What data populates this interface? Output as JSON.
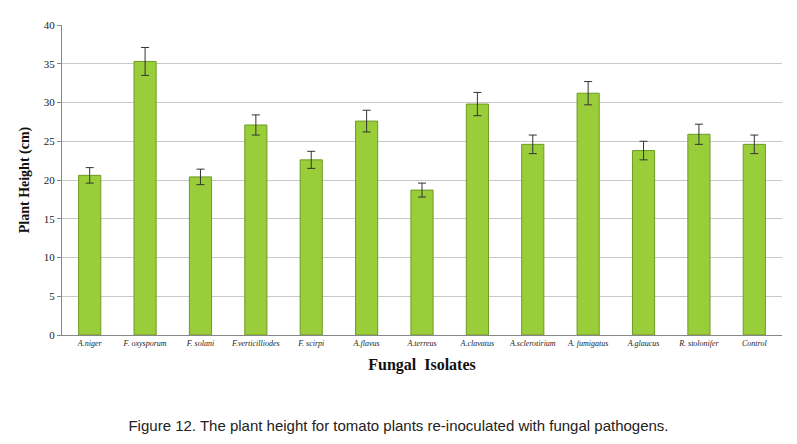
{
  "chart_data": {
    "type": "bar",
    "title": "Figure 12. The plant height for tomato plants re-inoculated with fungal pathogens.",
    "x_label": "Fungal  Isolates",
    "y_label": "Plant Height (cm)",
    "categories": [
      "A.niger",
      "F. oxysporum",
      "F. solani",
      "F.verticilliodes",
      "F. scirpi",
      "A.flavus",
      "A.terreus",
      "A.clavatus",
      "A.sclerotirium",
      "A. fumigatus",
      "A.glaucus",
      "R. stolonifer",
      "Control"
    ],
    "values": [
      20.6,
      35.3,
      20.4,
      27.1,
      22.6,
      27.6,
      18.7,
      29.8,
      24.6,
      31.2,
      23.8,
      25.9,
      24.6
    ],
    "errors": [
      1.0,
      1.8,
      1.0,
      1.3,
      1.1,
      1.4,
      0.9,
      1.5,
      1.2,
      1.5,
      1.2,
      1.3,
      1.2
    ],
    "color": "#9acd3a",
    "ylim": [
      0,
      40
    ],
    "yticks": [
      0,
      5,
      10,
      15,
      20,
      25,
      30,
      35,
      40
    ],
    "grid": true
  }
}
